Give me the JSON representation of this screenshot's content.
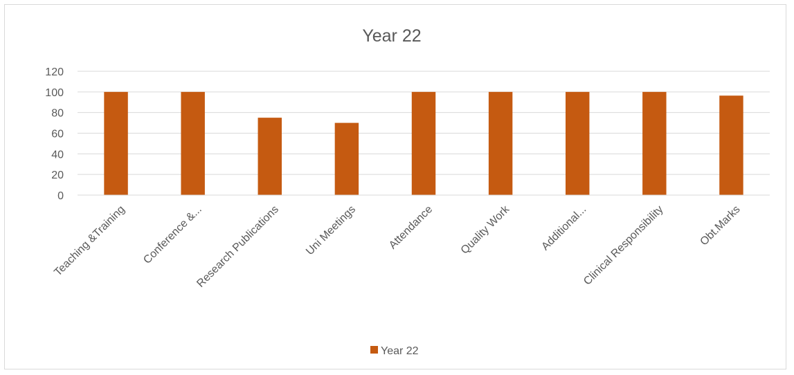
{
  "chart_data": {
    "type": "bar",
    "title": "Year 22",
    "xlabel": "",
    "ylabel": "",
    "categories": [
      "Teaching &Training",
      "Conference &...",
      "Research Publications",
      "Uni Meetings",
      "Attendance",
      "Quality Work",
      "Additional...",
      "Clinical Responsibility",
      "Obt.Marks"
    ],
    "series": [
      {
        "name": "Year 22",
        "values": [
          100,
          100,
          75,
          70,
          100,
          100,
          100,
          100,
          96.4
        ],
        "color": "#c55a11"
      }
    ],
    "ylim": [
      0,
      120
    ],
    "yticks": [
      0,
      20,
      40,
      60,
      80,
      100,
      120
    ],
    "grid": true,
    "legend_position": "bottom",
    "colors": {
      "gridline": "#d9d9d9",
      "axis_line": "#d9d9d9",
      "text": "#595959"
    }
  }
}
